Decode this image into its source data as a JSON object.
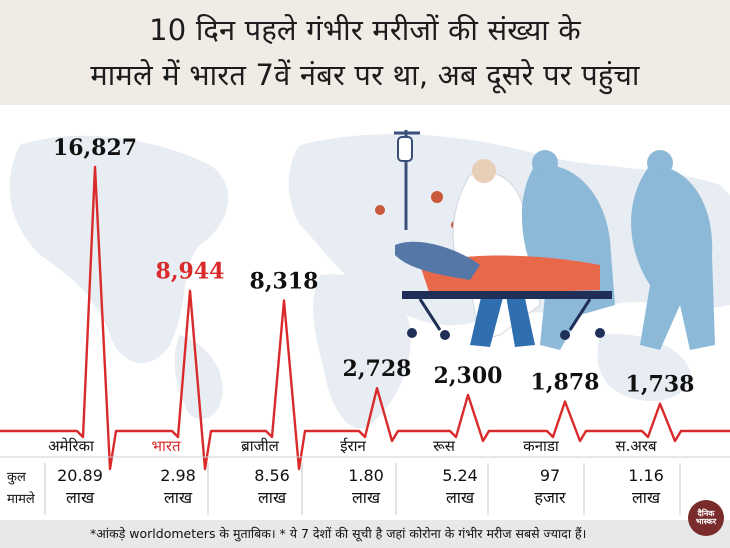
{
  "title": {
    "line1": "10 दिन पहले गंभीर मरीजों की संख्या के",
    "line2": "मामले में भारत 7वें नंबर पर था, अब दूसरे पर पहुंचा"
  },
  "row_header": {
    "line1": "कुल",
    "line2": "मामले"
  },
  "chart_data": {
    "type": "line",
    "title": "10 दिन पहले गंभीर मरीजों की संख्या के मामले में भारत 7वें नंबर पर था, अब दूसरे पर पहुंचा",
    "categories": [
      "अमेरिका",
      "भारत",
      "ब्राजील",
      "ईरान",
      "रूस",
      "कनाडा",
      "स.अरब"
    ],
    "values": [
      16827,
      8944,
      8318,
      2728,
      2300,
      1878,
      1738
    ],
    "value_labels": [
      "16,827",
      "8,944",
      "8,318",
      "2,728",
      "2,300",
      "1,878",
      "1,738"
    ],
    "total_cases": [
      {
        "value": "20.89",
        "unit": "लाख"
      },
      {
        "value": "2.98",
        "unit": "लाख"
      },
      {
        "value": "8.56",
        "unit": "लाख"
      },
      {
        "value": "1.80",
        "unit": "लाख"
      },
      {
        "value": "5.24",
        "unit": "लाख"
      },
      {
        "value": "97",
        "unit": "हजार"
      },
      {
        "value": "1.16",
        "unit": "लाख"
      }
    ],
    "highlight": "भारत",
    "colors": {
      "line": "#d92b2b",
      "highlight": "#d92b2b",
      "text": "#111111"
    }
  },
  "footnote": "*आंकड़े worldometers के मुताबिक। * ये 7 देशों की सूची है जहां कोरोना के गंभीर मरीज सबसे ज्यादा हैं।",
  "logo_text": {
    "line1": "दैनिक",
    "line2": "भास्कर"
  }
}
